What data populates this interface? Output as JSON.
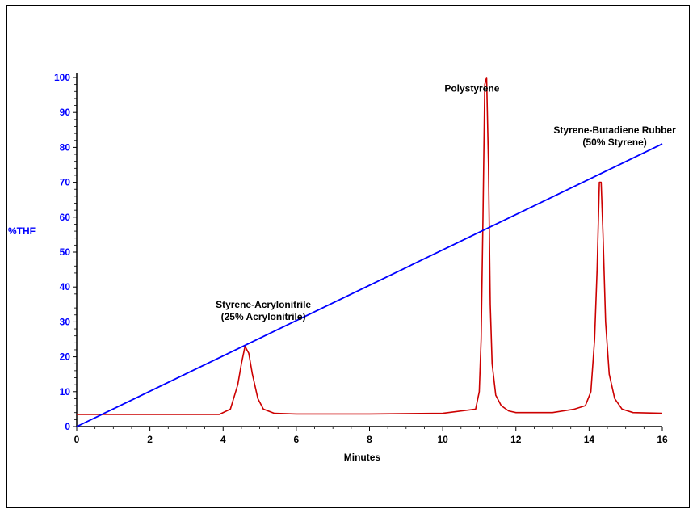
{
  "chart_data": {
    "type": "line",
    "xlabel": "Minutes",
    "ylabel": "%THF",
    "xlim": [
      0,
      16
    ],
    "ylim": [
      0,
      100
    ],
    "x_ticks": [
      0,
      2,
      4,
      6,
      8,
      10,
      12,
      14,
      16
    ],
    "y_ticks": [
      0,
      10,
      20,
      30,
      40,
      50,
      60,
      70,
      80,
      90,
      100
    ],
    "grid": false,
    "series": [
      {
        "color": "#cc0000",
        "x": [
          0,
          3.9,
          4.2,
          4.4,
          4.5,
          4.6,
          4.7,
          4.8,
          4.95,
          5.1,
          5.4,
          6,
          8,
          10,
          10.9,
          11.0,
          11.05,
          11.1,
          11.15,
          11.2,
          11.25,
          11.3,
          11.35,
          11.45,
          11.6,
          11.8,
          12,
          13,
          13.6,
          13.9,
          14.05,
          14.15,
          14.22,
          14.28,
          14.33,
          14.38,
          14.45,
          14.55,
          14.7,
          14.9,
          15.2,
          16
        ],
        "y": [
          3.5,
          3.5,
          5,
          12,
          18,
          23,
          21,
          15,
          8,
          5,
          3.8,
          3.6,
          3.6,
          3.8,
          5,
          10,
          25,
          60,
          98,
          100,
          75,
          35,
          18,
          9,
          6,
          4.5,
          4,
          4,
          5,
          6,
          10,
          25,
          45,
          70,
          70,
          55,
          30,
          15,
          8,
          5,
          4,
          3.8
        ]
      },
      {
        "color": "#0000ff",
        "x": [
          0,
          16
        ],
        "y": [
          0,
          81
        ]
      }
    ],
    "annotations": [
      {
        "lines": [
          "Styrene-Acrylonitrile",
          "(25% Acrylonitrile)"
        ],
        "x": 5.1,
        "y": 34
      },
      {
        "lines": [
          "Polystyrene"
        ],
        "x": 10.8,
        "y": 96
      },
      {
        "lines": [
          "Styrene-Butadiene Rubber",
          "(50% Styrene)"
        ],
        "x": 14.7,
        "y": 84
      }
    ]
  }
}
